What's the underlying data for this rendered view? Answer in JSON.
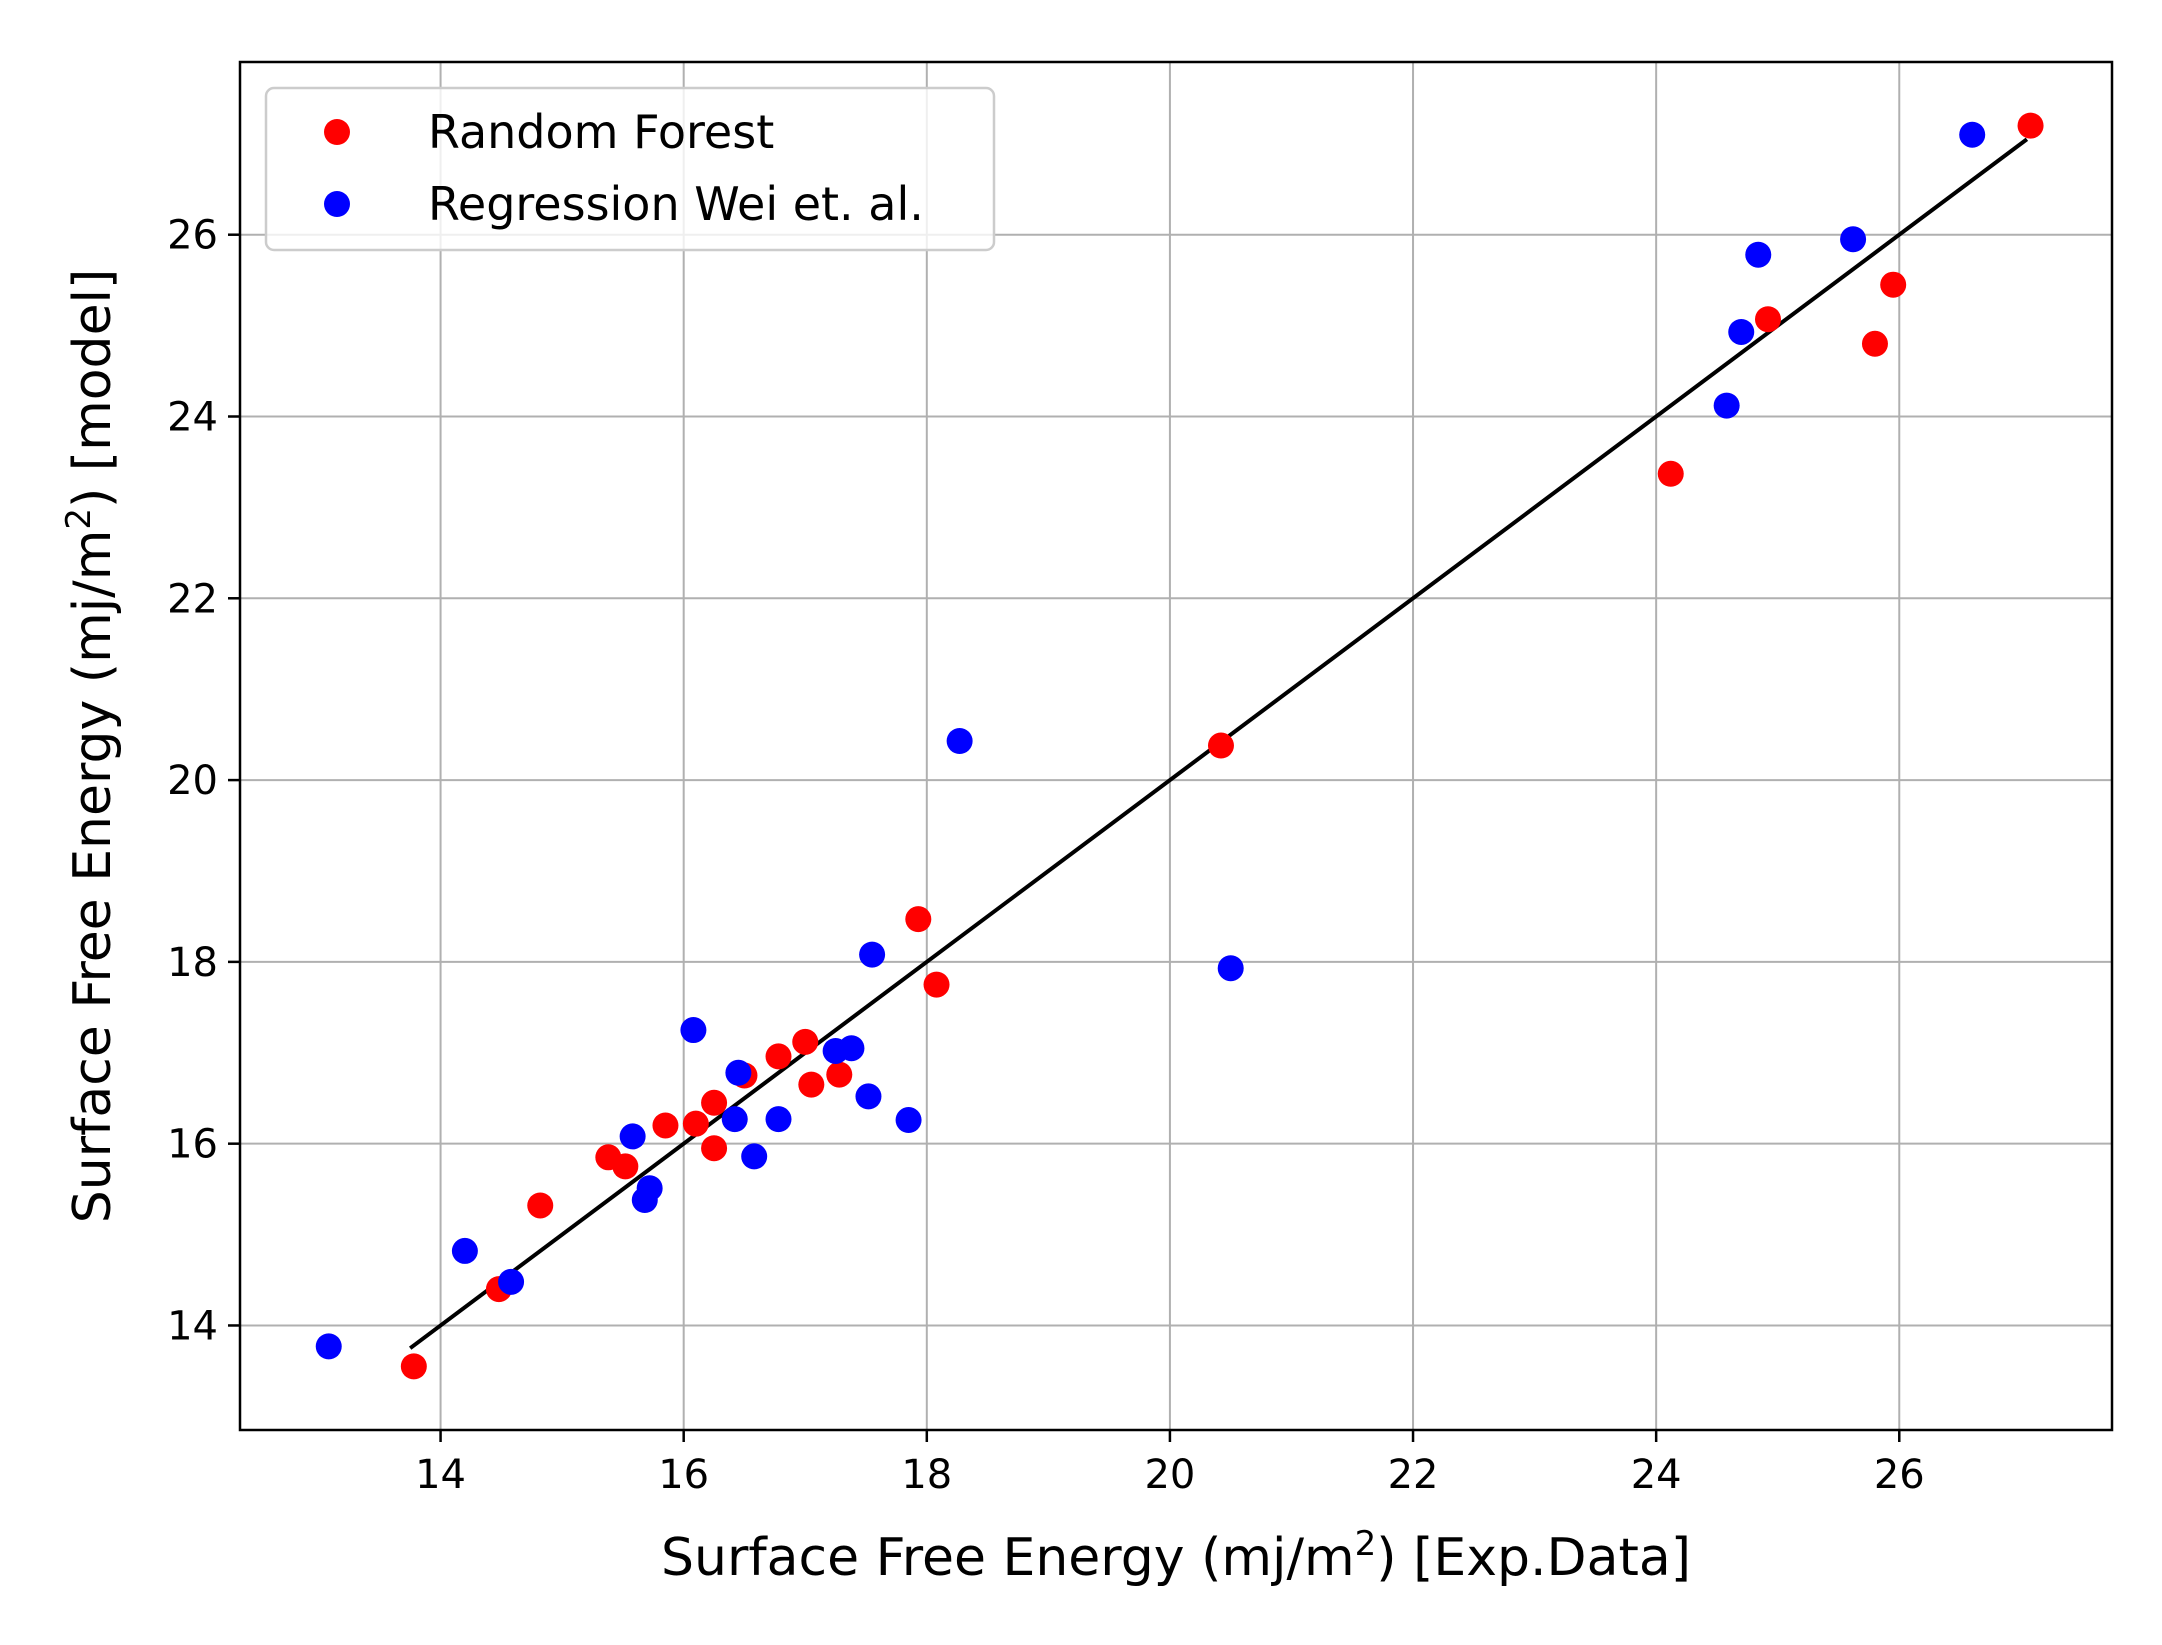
{
  "chart_data": {
    "type": "scatter",
    "title": "",
    "xlabel": {
      "main": "Surface Free Energy (mj/m",
      "sup": "2",
      "tail": ") [Exp.Data]"
    },
    "ylabel": {
      "main": "Surface Free Energy (mj/m",
      "sup": "2",
      "tail": ") [model]"
    },
    "xlim": [
      12.35,
      27.75
    ],
    "ylim": [
      12.85,
      27.9
    ],
    "xticks": [
      14,
      16,
      18,
      20,
      22,
      24,
      26
    ],
    "yticks": [
      14,
      16,
      18,
      20,
      22,
      24,
      26
    ],
    "xtick_labels": [
      "14",
      "16",
      "18",
      "20",
      "22",
      "24",
      "26"
    ],
    "ytick_labels": [
      "14",
      "16",
      "18",
      "20",
      "22",
      "24",
      "26"
    ],
    "grid": true,
    "legend_position": "top-left",
    "series": [
      {
        "name": "Random Forest",
        "color": "#ff0000",
        "points": [
          [
            13.78,
            13.55
          ],
          [
            14.48,
            14.4
          ],
          [
            14.82,
            15.32
          ],
          [
            15.38,
            15.85
          ],
          [
            15.52,
            15.75
          ],
          [
            15.85,
            16.2
          ],
          [
            16.1,
            16.22
          ],
          [
            16.25,
            16.45
          ],
          [
            16.25,
            15.95
          ],
          [
            16.5,
            16.75
          ],
          [
            16.78,
            16.96
          ],
          [
            17.0,
            17.12
          ],
          [
            17.05,
            16.65
          ],
          [
            17.28,
            16.76
          ],
          [
            17.93,
            18.47
          ],
          [
            18.08,
            17.75
          ],
          [
            20.42,
            20.38
          ],
          [
            24.12,
            23.37
          ],
          [
            24.92,
            25.07
          ],
          [
            25.8,
            24.8
          ],
          [
            25.95,
            25.45
          ],
          [
            27.08,
            27.2
          ]
        ]
      },
      {
        "name": "Regression Wei et. al.",
        "color": "#0000ff",
        "points": [
          [
            13.08,
            13.77
          ],
          [
            14.2,
            14.82
          ],
          [
            14.58,
            14.48
          ],
          [
            15.58,
            16.08
          ],
          [
            15.68,
            15.38
          ],
          [
            15.72,
            15.51
          ],
          [
            16.08,
            17.25
          ],
          [
            16.42,
            16.27
          ],
          [
            16.45,
            16.78
          ],
          [
            16.58,
            15.86
          ],
          [
            16.78,
            16.27
          ],
          [
            17.25,
            17.02
          ],
          [
            17.38,
            17.05
          ],
          [
            17.52,
            16.52
          ],
          [
            17.55,
            18.08
          ],
          [
            17.85,
            16.26
          ],
          [
            18.27,
            20.43
          ],
          [
            20.5,
            17.93
          ],
          [
            24.58,
            24.12
          ],
          [
            24.7,
            24.93
          ],
          [
            24.84,
            25.78
          ],
          [
            25.62,
            25.95
          ],
          [
            26.6,
            27.1
          ]
        ]
      }
    ],
    "reference_line": {
      "from": [
        13.75,
        13.75
      ],
      "to": [
        27.05,
        27.05
      ],
      "color": "#000000"
    }
  },
  "colors": {
    "grid": "#b0b0b0",
    "axes": "#000000",
    "legend_border": "#cccccc"
  }
}
